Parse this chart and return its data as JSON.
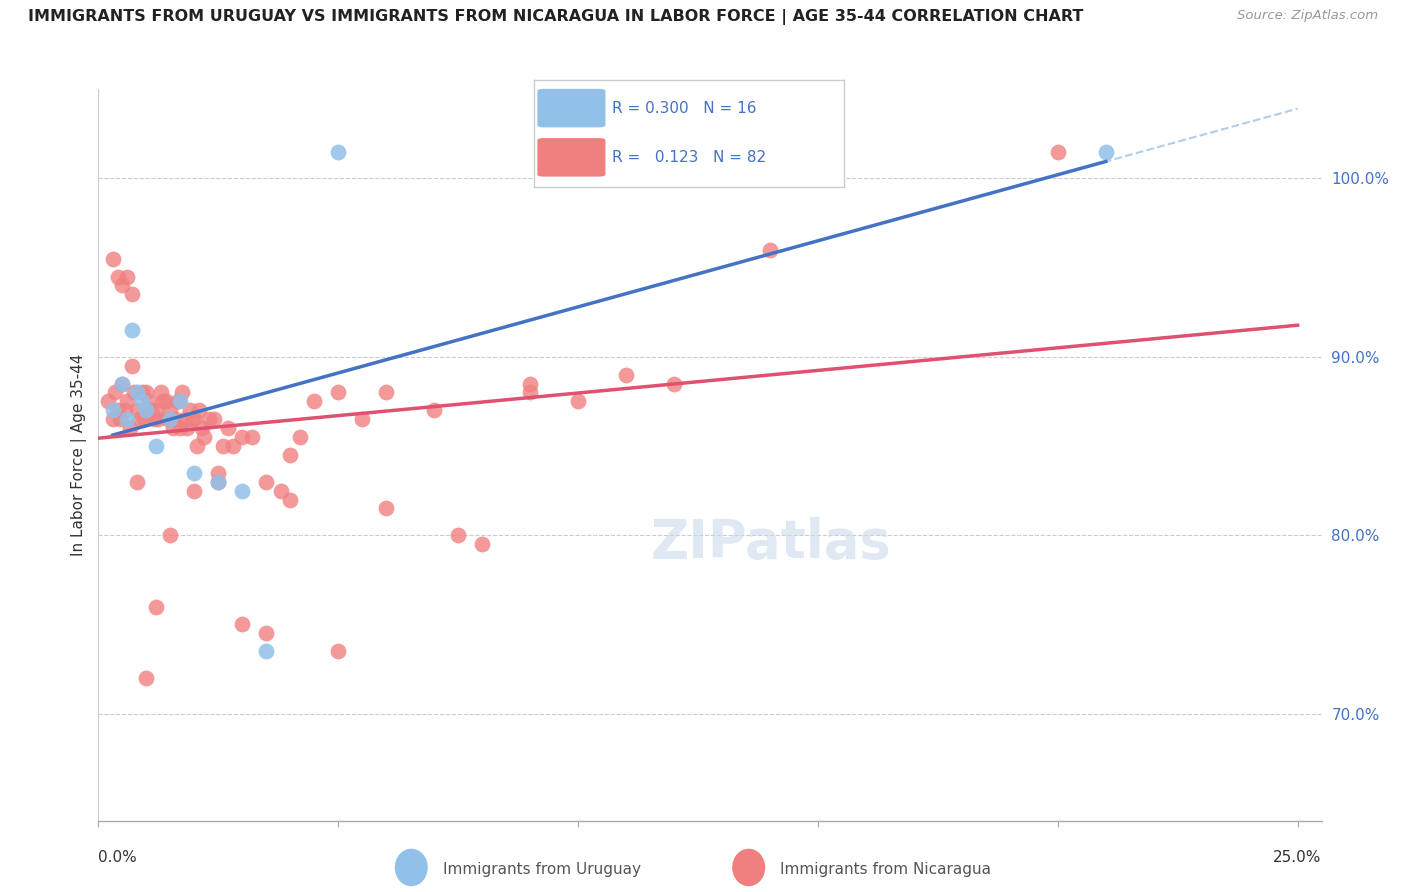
{
  "title": "IMMIGRANTS FROM URUGUAY VS IMMIGRANTS FROM NICARAGUA IN LABOR FORCE | AGE 35-44 CORRELATION CHART",
  "source": "Source: ZipAtlas.com",
  "ylabel": "In Labor Force | Age 35-44",
  "xlim": [
    0.0,
    25.5
  ],
  "ylim": [
    64.0,
    105.0
  ],
  "uruguay_color": "#91c0e8",
  "nicaragua_color": "#f08080",
  "trend_uruguay_color": "#4472c4",
  "trend_nicaragua_color": "#e05070",
  "trend_uruguay_dashed_color": "#a8c8e8",
  "legend_R_uruguay": "0.300",
  "legend_N_uruguay": "16",
  "legend_R_nicaragua": "0.123",
  "legend_N_nicaragua": "82",
  "yticks": [
    70.0,
    80.0,
    90.0,
    100.0
  ],
  "uru_x": [
    0.3,
    0.5,
    0.6,
    0.7,
    0.8,
    0.9,
    1.0,
    1.2,
    1.5,
    1.7,
    2.0,
    2.5,
    3.0,
    3.5,
    5.0,
    21.0
  ],
  "uru_y": [
    87.0,
    88.5,
    86.5,
    91.5,
    88.0,
    87.5,
    87.0,
    85.0,
    86.5,
    87.5,
    83.5,
    83.0,
    82.5,
    73.5,
    101.5,
    101.5
  ],
  "nic_x": [
    0.2,
    0.3,
    0.35,
    0.4,
    0.45,
    0.5,
    0.55,
    0.6,
    0.65,
    0.7,
    0.75,
    0.8,
    0.85,
    0.9,
    0.95,
    1.0,
    1.05,
    1.1,
    1.15,
    1.2,
    1.25,
    1.3,
    1.35,
    1.4,
    1.45,
    1.5,
    1.55,
    1.6,
    1.65,
    1.7,
    1.75,
    1.8,
    1.85,
    1.9,
    1.95,
    2.0,
    2.05,
    2.1,
    2.15,
    2.2,
    2.3,
    2.4,
    2.5,
    2.6,
    2.7,
    2.8,
    3.0,
    3.2,
    3.5,
    3.8,
    4.0,
    4.2,
    4.5,
    5.0,
    5.5,
    6.0,
    7.0,
    8.0,
    9.0,
    10.0,
    11.0,
    12.0,
    14.0,
    20.0,
    0.3,
    0.4,
    0.5,
    0.6,
    0.7,
    0.8,
    1.0,
    1.2,
    1.5,
    2.0,
    2.5,
    3.0,
    3.5,
    4.0,
    5.0,
    6.0,
    7.5,
    9.0
  ],
  "nic_y": [
    87.5,
    86.5,
    88.0,
    87.0,
    86.5,
    88.5,
    87.0,
    87.5,
    86.0,
    89.5,
    88.0,
    87.0,
    86.5,
    88.0,
    86.5,
    88.0,
    87.5,
    87.0,
    86.5,
    87.0,
    86.5,
    88.0,
    87.5,
    87.5,
    86.5,
    87.0,
    86.0,
    86.5,
    87.5,
    86.0,
    88.0,
    86.5,
    86.0,
    87.0,
    86.5,
    86.5,
    85.0,
    87.0,
    86.0,
    85.5,
    86.5,
    86.5,
    83.5,
    85.0,
    86.0,
    85.0,
    85.5,
    85.5,
    83.0,
    82.5,
    84.5,
    85.5,
    87.5,
    88.0,
    86.5,
    88.0,
    87.0,
    79.5,
    88.0,
    87.5,
    89.0,
    88.5,
    96.0,
    101.5,
    95.5,
    94.5,
    94.0,
    94.5,
    93.5,
    83.0,
    72.0,
    76.0,
    80.0,
    82.5,
    83.0,
    75.0,
    74.5,
    82.0,
    73.5,
    81.5,
    80.0,
    88.5
  ]
}
